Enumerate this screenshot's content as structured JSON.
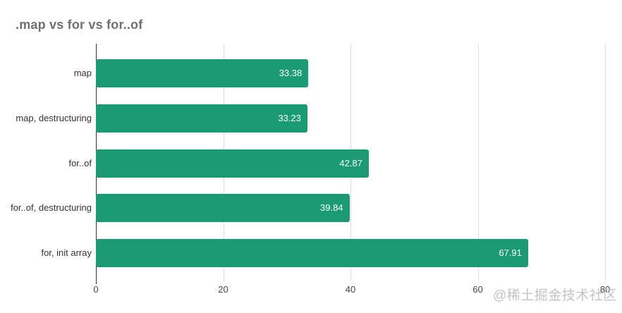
{
  "title": ".map vs for vs for..of",
  "watermark": "@稀土掘金技术社区",
  "chart_data": {
    "type": "bar",
    "orientation": "horizontal",
    "title": ".map vs for vs for..of",
    "categories": [
      "map",
      "map, destructuring",
      "for..of",
      "for..of, destructuring",
      "for, init array"
    ],
    "values": [
      33.38,
      33.23,
      42.87,
      39.84,
      67.91
    ],
    "value_labels": [
      "33.38",
      "33.23",
      "42.87",
      "39.84",
      "67.91"
    ],
    "x_ticks": [
      0,
      20,
      40,
      60,
      80
    ],
    "xlim": [
      0,
      80
    ],
    "xlabel": "",
    "ylabel": "",
    "grid": true,
    "legend": "none",
    "colors": {
      "bar": "#1a9b74",
      "value_text": "#ffffff",
      "gridline": "#dcdcdc",
      "zero_axis": "#333333",
      "title_text": "#6f6f6f",
      "category_text": "#333333",
      "tick_text": "#444444",
      "watermark_text": "#c3c3c3",
      "background": "#ffffff"
    }
  }
}
